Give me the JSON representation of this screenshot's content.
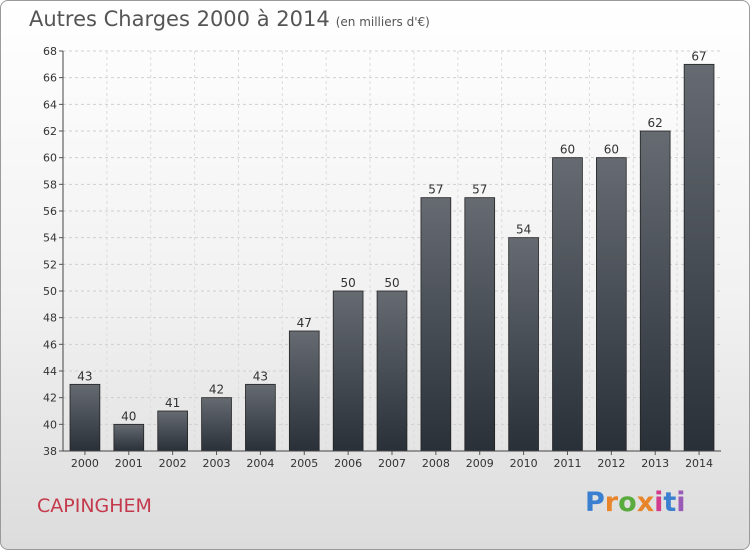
{
  "header": {
    "title": "Autres Charges 2000 à 2014",
    "subtitle": "(en milliers d'€)"
  },
  "footer": {
    "city": "CAPINGHEM",
    "logo_text": "Proxiti",
    "logo_colors": [
      "#3a7fd0",
      "#e8852b",
      "#5aab3d",
      "#e8852b",
      "#d23a8c",
      "#3a7fd0",
      "#9a5ab8"
    ]
  },
  "chart_data": {
    "type": "bar",
    "categories": [
      "2000",
      "2001",
      "2002",
      "2003",
      "2004",
      "2005",
      "2006",
      "2007",
      "2008",
      "2009",
      "2010",
      "2011",
      "2012",
      "2013",
      "2014"
    ],
    "values": [
      43,
      40,
      41,
      42,
      43,
      47,
      50,
      50,
      57,
      57,
      54,
      60,
      60,
      62,
      67
    ],
    "ylim": [
      38,
      68
    ],
    "yticks": [
      38,
      40,
      42,
      44,
      46,
      48,
      50,
      52,
      54,
      56,
      58,
      60,
      62,
      64,
      66,
      68
    ],
    "grid": true,
    "bar_color_top": "#666b72",
    "bar_color_bottom": "#2a3038"
  }
}
